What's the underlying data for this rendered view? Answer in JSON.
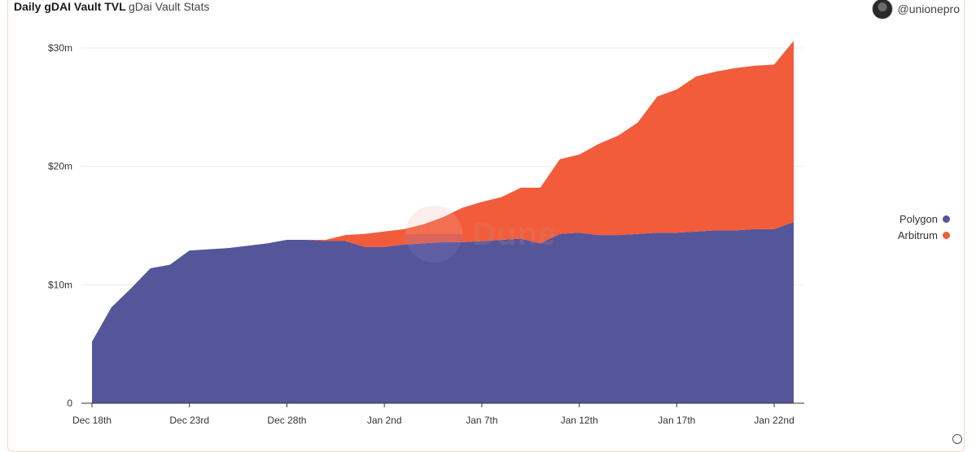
{
  "header": {
    "title": "Daily gDAI Vault TVL",
    "subtitle": "gDai Vault Stats",
    "author": "@unionepro"
  },
  "watermark": "Dune",
  "colors": {
    "polygon": "#55559a",
    "arbitrum": "#f25c3b",
    "grid": "#ececec",
    "axis": "#333333"
  },
  "chart_data": {
    "type": "area",
    "stacked": true,
    "title": "Daily gDAI Vault TVL",
    "subtitle": "gDai Vault Stats",
    "x": [
      "2022-12-18",
      "2022-12-19",
      "2022-12-20",
      "2022-12-21",
      "2022-12-22",
      "2022-12-23",
      "2022-12-24",
      "2022-12-25",
      "2022-12-26",
      "2022-12-27",
      "2022-12-28",
      "2022-12-29",
      "2022-12-30",
      "2022-12-31",
      "2023-01-01",
      "2023-01-02",
      "2023-01-03",
      "2023-01-04",
      "2023-01-05",
      "2023-01-06",
      "2023-01-07",
      "2023-01-08",
      "2023-01-09",
      "2023-01-10",
      "2023-01-11",
      "2023-01-12",
      "2023-01-13",
      "2023-01-14",
      "2023-01-15",
      "2023-01-16",
      "2023-01-17",
      "2023-01-18",
      "2023-01-19",
      "2023-01-20",
      "2023-01-21",
      "2023-01-22",
      "2023-01-23"
    ],
    "x_tick_labels": [
      "Dec 18th",
      "Dec 23rd",
      "Dec 28th",
      "Jan 2nd",
      "Jan 7th",
      "Jan 12th",
      "Jan 17th",
      "Jan 22nd"
    ],
    "x_tick_dates": [
      "2022-12-18",
      "2022-12-23",
      "2022-12-28",
      "2023-01-02",
      "2023-01-07",
      "2023-01-12",
      "2023-01-17",
      "2023-01-22"
    ],
    "y_ticks": [
      0,
      10000000,
      20000000,
      30000000
    ],
    "y_tick_labels": [
      "0",
      "$10m",
      "$20m",
      "$30m"
    ],
    "ylim": [
      0,
      30000000
    ],
    "grid": true,
    "legend_position": "right",
    "series": [
      {
        "name": "Polygon",
        "values": [
          5200000,
          8100000,
          9700000,
          11400000,
          11700000,
          12900000,
          13000000,
          13100000,
          13300000,
          13500000,
          13800000,
          13800000,
          13700000,
          13700000,
          13200000,
          13200000,
          13400000,
          13500000,
          13600000,
          13600000,
          13700000,
          13800000,
          13900000,
          13500000,
          14300000,
          14400000,
          14200000,
          14200000,
          14300000,
          14400000,
          14400000,
          14500000,
          14600000,
          14600000,
          14700000,
          14700000,
          15300000
        ]
      },
      {
        "name": "Arbitrum",
        "values": [
          0,
          0,
          0,
          0,
          0,
          0,
          0,
          0,
          0,
          0,
          0,
          0,
          100000,
          500000,
          1100000,
          1300000,
          1300000,
          1600000,
          2100000,
          2900000,
          3300000,
          3600000,
          4300000,
          4700000,
          6300000,
          6600000,
          7700000,
          8400000,
          9400000,
          11500000,
          12100000,
          13100000,
          13400000,
          13700000,
          13800000,
          13900000,
          15300000
        ]
      }
    ]
  }
}
